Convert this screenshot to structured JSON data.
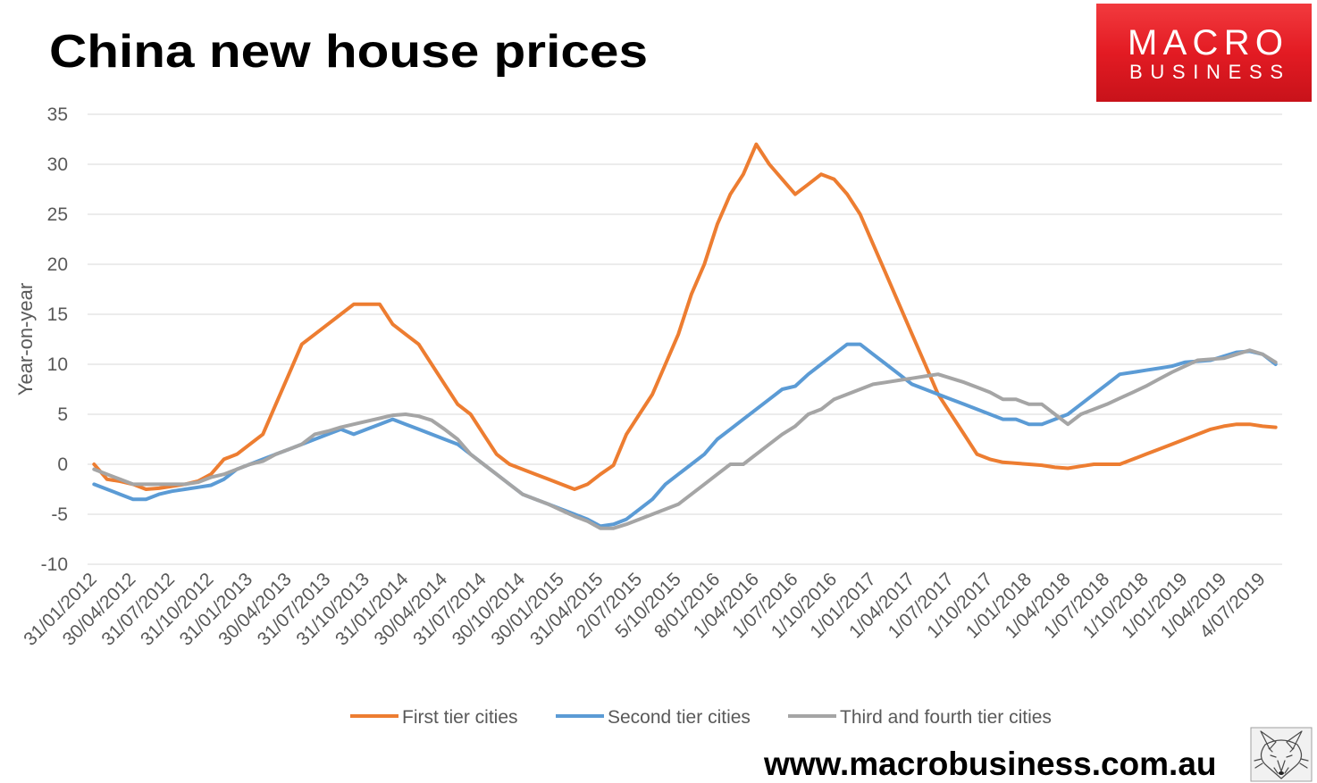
{
  "chart_data": {
    "type": "line",
    "title": "China new house prices",
    "xlabel": "",
    "ylabel": "Year-on-year",
    "ylim": [
      -10,
      35
    ],
    "yticks": [
      35,
      30,
      25,
      20,
      15,
      10,
      5,
      0,
      -5,
      -10
    ],
    "grid": true,
    "legend": "bottom",
    "x": [
      "31/01/2012",
      "",
      "",
      "30/04/2012",
      "",
      "",
      "31/07/2012",
      "",
      "",
      "31/10/2012",
      "",
      "",
      "31/01/2013",
      "",
      "",
      "30/04/2013",
      "",
      "",
      "31/07/2013",
      "",
      "",
      "31/10/2013",
      "",
      "",
      "31/01/2014",
      "",
      "",
      "30/04/2014",
      "",
      "",
      "31/07/2014",
      "",
      "",
      "30/10/2014",
      "",
      "",
      "30/01/2015",
      "",
      "",
      "31/04/2015",
      "",
      "",
      "2/07/2015",
      "",
      "",
      "5/10/2015",
      "",
      "",
      "8/01/2016",
      "",
      "",
      "1/04/2016",
      "",
      "",
      "1/07/2016",
      "",
      "",
      "1/10/2016",
      "",
      "",
      "1/01/2017",
      "",
      "",
      "1/04/2017",
      "",
      "",
      "1/07/2017",
      "",
      "",
      "1/10/2017",
      "",
      "",
      "1/01/2018",
      "",
      "",
      "1/04/2018",
      "",
      "",
      "1/07/2018",
      "",
      "",
      "1/10/2018",
      "",
      "",
      "1/01/2019",
      "",
      "",
      "1/04/2019",
      "",
      "",
      "4/07/2019",
      ""
    ],
    "series": [
      {
        "name": "First tier cities",
        "color": "#ED7D31",
        "values": [
          0,
          -1.5,
          -1.7,
          -2,
          -2.5,
          -2.4,
          -2.2,
          -2,
          -1.7,
          -1,
          0.5,
          1,
          2,
          3,
          6,
          9,
          12,
          13,
          14,
          15,
          16,
          16,
          16,
          14,
          13,
          12,
          10,
          8,
          6,
          5,
          3,
          1,
          0,
          -0.5,
          -1,
          -1.5,
          -2,
          -2.5,
          -2,
          -1,
          -0.1,
          3,
          5,
          7,
          10,
          13,
          17,
          20,
          24,
          27,
          29,
          32,
          30,
          28.5,
          27,
          28,
          29,
          28.5,
          27,
          25,
          22,
          19,
          16,
          13,
          10,
          7,
          5,
          3,
          1,
          0.5,
          0.2,
          0.1,
          0,
          -0.1,
          -0.3,
          -0.4,
          -0.2,
          0,
          0,
          0,
          0.5,
          1,
          1.5,
          2,
          2.5,
          3,
          3.5,
          3.8,
          4,
          4,
          3.8,
          3.7
        ]
      },
      {
        "name": "Second tier cities",
        "color": "#5B9BD5",
        "values": [
          -2,
          -2.5,
          -3,
          -3.5,
          -3.5,
          -3,
          -2.7,
          -2.5,
          -2.3,
          -2.1,
          -1.5,
          -0.5,
          0,
          0.5,
          1,
          1.5,
          2,
          2.5,
          3,
          3.5,
          3,
          3.5,
          4,
          4.5,
          4,
          3.5,
          3,
          2.5,
          2,
          1,
          0,
          -1,
          -2,
          -3,
          -3.5,
          -4,
          -4.5,
          -5,
          -5.5,
          -6.2,
          -6,
          -5.5,
          -4.5,
          -3.5,
          -2,
          -1,
          0,
          1,
          2.5,
          3.5,
          4.5,
          5.5,
          6.5,
          7.5,
          7.8,
          9,
          10,
          11,
          12,
          12,
          11,
          10,
          9,
          8,
          7.5,
          7,
          6.5,
          6,
          5.5,
          5,
          4.5,
          4.5,
          4,
          4,
          4.5,
          5,
          6,
          7,
          8,
          9,
          9.2,
          9.4,
          9.6,
          9.8,
          10.2,
          10.3,
          10.4,
          10.8,
          11.2,
          11.3,
          11,
          10
        ]
      },
      {
        "name": "Third and fourth tier cities",
        "color": "#A5A5A5",
        "values": [
          -0.5,
          -1,
          -1.5,
          -2,
          -2,
          -2,
          -2,
          -2,
          -1.8,
          -1.3,
          -1,
          -0.5,
          0,
          0.3,
          1,
          1.5,
          2,
          3,
          3.3,
          3.7,
          4,
          4.3,
          4.6,
          4.9,
          5,
          4.8,
          4.4,
          3.5,
          2.5,
          1,
          0,
          -1,
          -2,
          -3,
          -3.5,
          -4,
          -4.6,
          -5.2,
          -5.7,
          -6.4,
          -6.4,
          -6,
          -5.5,
          -5,
          -4.5,
          -4,
          -3,
          -2,
          -1,
          0,
          0,
          1,
          2,
          3,
          3.8,
          5,
          5.5,
          6.5,
          7,
          7.5,
          8,
          8.2,
          8.4,
          8.6,
          8.8,
          9,
          8.6,
          8.2,
          7.7,
          7.2,
          6.5,
          6.5,
          6,
          6,
          5,
          4,
          5,
          5.5,
          6,
          6.6,
          7.2,
          7.8,
          8.5,
          9.2,
          9.8,
          10.4,
          10.5,
          10.6,
          11,
          11.4,
          11,
          10.2
        ]
      }
    ]
  },
  "logo": {
    "line1": "MACRO",
    "line2": "BUSINESS",
    "background": "#E31B23",
    "text_color": "#FFFFFF"
  },
  "footer": {
    "website": "www.macrobusiness.com.au",
    "icon": "fox-icon"
  }
}
